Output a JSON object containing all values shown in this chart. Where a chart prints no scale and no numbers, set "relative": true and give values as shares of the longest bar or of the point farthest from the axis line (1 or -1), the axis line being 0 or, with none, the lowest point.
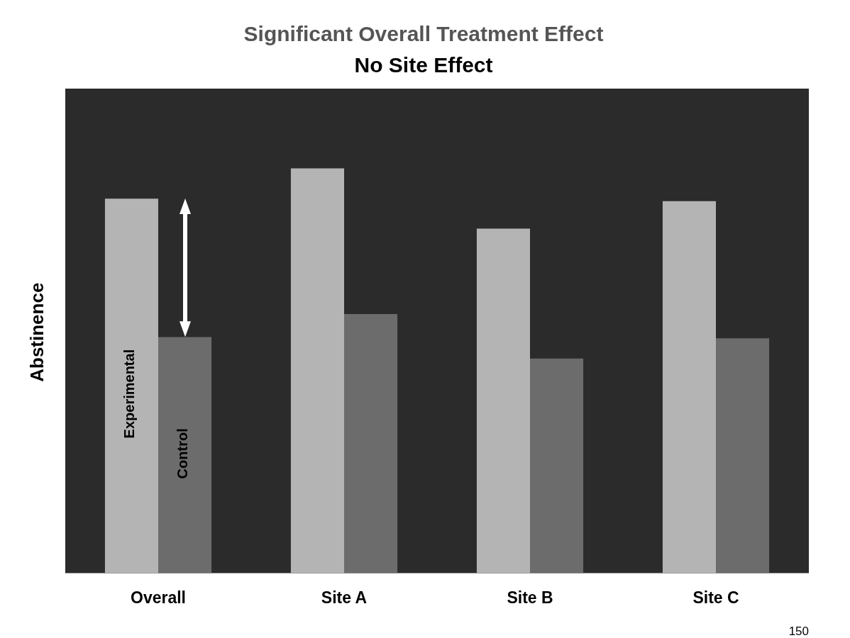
{
  "chart_data": {
    "type": "bar",
    "title": "Significant Overall Treatment Effect",
    "subtitle": "No Site Effect",
    "ylabel": "Abstinence",
    "relative": true,
    "categories": [
      "Overall",
      "Site A",
      "Site B",
      "Site C"
    ],
    "series": [
      {
        "name": "Experimental",
        "color": "#b4b4b4",
        "values": [
          0.925,
          1,
          0.851,
          0.919
        ]
      },
      {
        "name": "Control",
        "color": "#6c6c6c",
        "values": [
          0.583,
          0.64,
          0.53,
          0.58
        ]
      }
    ],
    "annotations": [
      "150"
    ],
    "grid": false,
    "legend": false
  }
}
